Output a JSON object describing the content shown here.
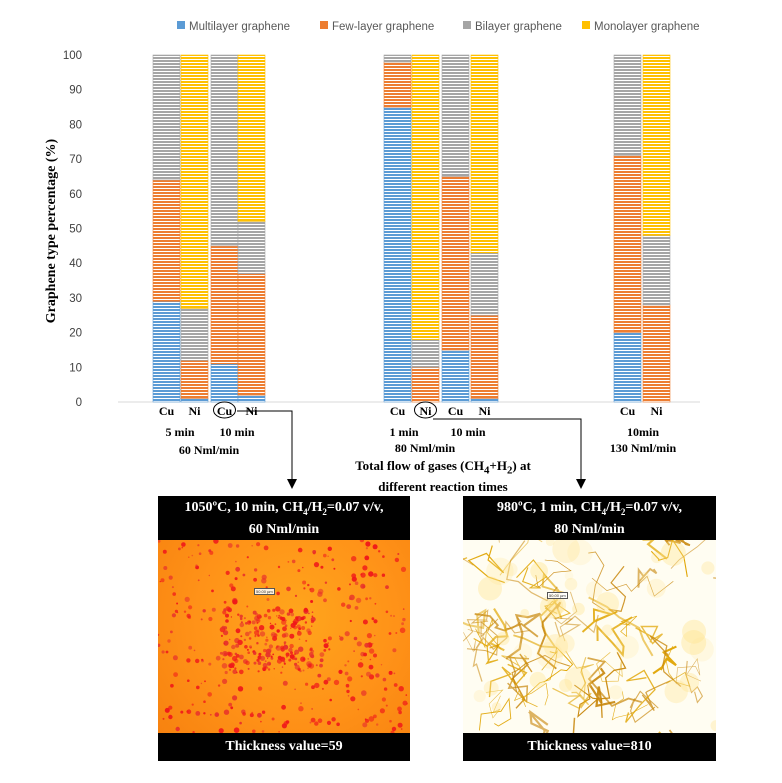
{
  "chart_data": {
    "type": "stacked_bar",
    "ylabel": "Graphene type percentage (%)",
    "ylim": [
      0,
      100
    ],
    "yticks": [
      0,
      10,
      20,
      30,
      40,
      50,
      60,
      70,
      80,
      90,
      100
    ],
    "legend": [
      {
        "name": "Multilayer graphene",
        "color": "#5b9bd5"
      },
      {
        "name": "Few-layer graphene",
        "color": "#ed7d31"
      },
      {
        "name": "Bilayer graphene",
        "color": "#a5a5a5"
      },
      {
        "name": "Monolayer graphene",
        "color": "#ffc000"
      }
    ],
    "bars": [
      {
        "label": "Cu",
        "time": "5 min",
        "flow": "60 Nml/min",
        "values": [
          29,
          35,
          36,
          0
        ]
      },
      {
        "label": "Ni",
        "time": "5 min",
        "flow": "60 Nml/min",
        "values": [
          1,
          11,
          15,
          73
        ]
      },
      {
        "label": "Cu",
        "time": "10 min",
        "flow": "60 Nml/min",
        "circled": true,
        "values": [
          11,
          34,
          55,
          0
        ]
      },
      {
        "label": "Ni",
        "time": "10 min",
        "flow": "60 Nml/min",
        "values": [
          2,
          35,
          15,
          48
        ]
      },
      {
        "label": "Cu",
        "time": "1 min",
        "flow": "80 Nml/min",
        "values": [
          85,
          13,
          2,
          0
        ]
      },
      {
        "label": "Ni",
        "time": "1 min",
        "flow": "80 Nml/min",
        "circled": true,
        "values": [
          0,
          10,
          8,
          82
        ]
      },
      {
        "label": "Cu",
        "time": "10 min",
        "flow": "80 Nml/min",
        "values": [
          15,
          50,
          35,
          0
        ]
      },
      {
        "label": "Ni",
        "time": "10 min",
        "flow": "80 Nml/min",
        "values": [
          1,
          24,
          18,
          57
        ]
      },
      {
        "label": "Cu",
        "time": "10min",
        "flow": "130 Nml/min",
        "values": [
          20,
          51,
          29,
          0
        ]
      },
      {
        "label": "Ni",
        "time": "10min",
        "flow": "130 Nml/min",
        "values": [
          0,
          28,
          20,
          52
        ]
      }
    ],
    "group_time_labels": [
      "5 min",
      "10 min",
      "1 min",
      "10 min",
      "10min"
    ],
    "group_flow_labels": [
      "60 Nml/min",
      "80 Nml/min",
      "130 Nml/min"
    ]
  },
  "flow_note": {
    "line1_prefix": "Total flow of gases (CH",
    "sub1": "4",
    "mid": "+H",
    "sub2": "2",
    "line1_suffix": ") at",
    "line2": "different reaction times"
  },
  "panel_left": {
    "caption_line1_prefix": "1050ºC, 10 min, CH",
    "sub1": "4",
    "caption_mid": "/H",
    "sub2": "2",
    "caption_line1_suffix": "=0.07 v/v,",
    "caption_line2": "60 Nml/min",
    "scale_label": "50.00 µm",
    "thickness": "Thickness value=59"
  },
  "panel_right": {
    "caption_line1_prefix": "980ºC, 1 min, CH",
    "sub1": "4",
    "caption_mid": "/H",
    "sub2": "2",
    "caption_line1_suffix": "=0.07 v/v,",
    "caption_line2": "80 Nml/min",
    "scale_label": "50.00 µm",
    "thickness": "Thickness value=810"
  }
}
